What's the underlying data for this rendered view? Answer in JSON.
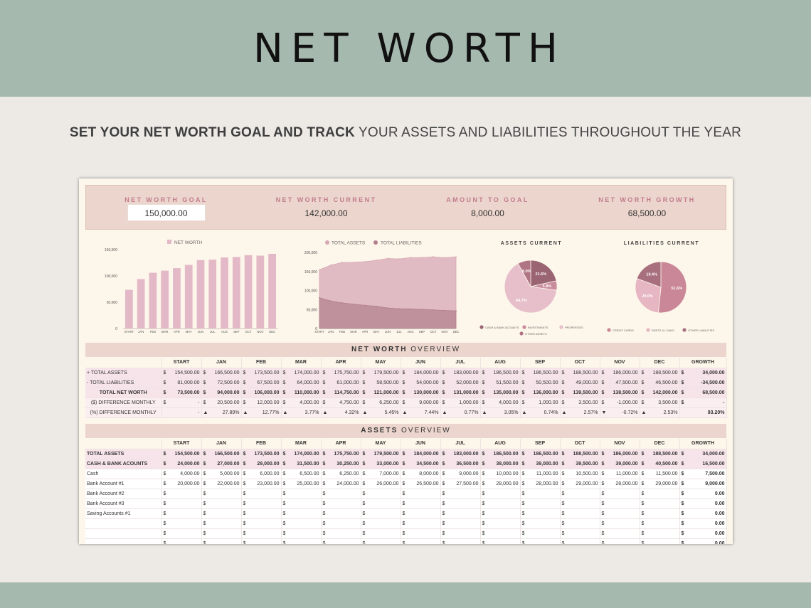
{
  "title": "NET WORTH",
  "subtitle": {
    "bold": "SET YOUR NET WORTH GOAL AND TRACK",
    "rest": " YOUR ASSETS AND LIABILITIES THROUGHOUT THE YEAR"
  },
  "kpis": [
    {
      "label": "NET WORTH GOAL",
      "value": "150,000.00"
    },
    {
      "label": "NET WORTH CURRENT",
      "value": "142,000.00"
    },
    {
      "label": "AMOUNT TO GOAL",
      "value": "8,000.00"
    },
    {
      "label": "NET WORTH GROWTH",
      "value": "68,500.00"
    }
  ],
  "colors": {
    "accent": "#c07d8b",
    "bar": "#e3b9c8",
    "assets": "#d7a7b5",
    "liabilities": "#b07f8c",
    "band": "#a6b9ae"
  },
  "chart_data": [
    {
      "type": "bar",
      "legend": [
        "NET WORTH"
      ],
      "categories": [
        "START",
        "JAN",
        "FEB",
        "MAR",
        "APR",
        "MAY",
        "JUN",
        "JUL",
        "AUG",
        "SEP",
        "OCT",
        "NOV",
        "DEC"
      ],
      "values": [
        73500,
        94000,
        106000,
        110000,
        114750,
        121000,
        130000,
        131000,
        135000,
        136000,
        139500,
        138500,
        142000
      ],
      "yticks": [
        "0",
        "50,000",
        "100,000",
        "150,000"
      ],
      "ylim": [
        0,
        150000
      ]
    },
    {
      "type": "area",
      "categories": [
        "START",
        "JAN",
        "FEB",
        "MAR",
        "APR",
        "MAY",
        "JUN",
        "JUL",
        "AUG",
        "SEP",
        "OCT",
        "NOV",
        "DEC"
      ],
      "series": [
        {
          "name": "TOTAL ASSETS",
          "values": [
            154500,
            166500,
            173500,
            174000,
            175750,
            179500,
            184000,
            183000,
            186500,
            186500,
            188500,
            186000,
            188500
          ]
        },
        {
          "name": "TOTAL LIABILITIES",
          "values": [
            81000,
            72500,
            67500,
            64000,
            61000,
            58500,
            54000,
            52000,
            51500,
            50500,
            49000,
            47500,
            46500
          ]
        }
      ],
      "yticks": [
        "0",
        "50,000",
        "100,000",
        "150,000",
        "200,000"
      ],
      "ylim": [
        0,
        200000
      ]
    },
    {
      "type": "pie",
      "title": "ASSETS CURRENT",
      "labels": [
        "CASH & BANK ACOUNTS",
        "INVESTMENTS",
        "PROPERTIES",
        "OTHER ASSETS"
      ],
      "values": [
        21.5,
        5.8,
        64.7,
        8.0
      ],
      "value_labels": [
        "21.5%",
        "5.8%",
        "64.7%",
        "8.0%"
      ],
      "colors": [
        "#9a6473",
        "#c98c9d",
        "#e6bfcb",
        "#b07585"
      ]
    },
    {
      "type": "pie",
      "title": "LIABILITIES CURRENT",
      "labels": [
        "CREDIT CARDS",
        "DEBTS & LOANS",
        "OTHER LIABILITIES"
      ],
      "values": [
        51.6,
        29.0,
        19.4
      ],
      "value_labels": [
        "51.6%",
        "29.0%",
        "19.4%"
      ],
      "colors": [
        "#c98797",
        "#e6b6c3",
        "#a8707f"
      ]
    }
  ],
  "overview": {
    "title_bold": "NET WORTH",
    "title_rest": " OVERVIEW",
    "headers": [
      "",
      "START",
      "JAN",
      "FEB",
      "MAR",
      "APR",
      "MAY",
      "JUN",
      "JUL",
      "AUG",
      "SEP",
      "OCT",
      "NOV",
      "DEC",
      "GROWTH"
    ],
    "rows": [
      {
        "label": "+ TOTAL ASSETS",
        "cells": [
          "154,500.00",
          "166,500.00",
          "173,500.00",
          "174,000.00",
          "175,750.00",
          "179,500.00",
          "184,000.00",
          "183,000.00",
          "186,500.00",
          "186,500.00",
          "188,500.00",
          "186,000.00",
          "188,500.00"
        ],
        "growth": "34,000.00"
      },
      {
        "label": "- TOTAL LIABILITIES",
        "cells": [
          "81,000.00",
          "72,500.00",
          "67,500.00",
          "64,000.00",
          "61,000.00",
          "58,500.00",
          "54,000.00",
          "52,000.00",
          "51,500.00",
          "50,500.00",
          "49,000.00",
          "47,500.00",
          "46,500.00"
        ],
        "growth": "-34,500.00"
      },
      {
        "label": "TOTAL NET WORTH",
        "cells": [
          "73,500.00",
          "94,000.00",
          "106,000.00",
          "110,000.00",
          "114,750.00",
          "121,000.00",
          "130,000.00",
          "131,000.00",
          "135,000.00",
          "136,000.00",
          "139,500.00",
          "138,500.00",
          "142,000.00"
        ],
        "growth": "68,500.00"
      },
      {
        "label": "($) DIFFERENCE MONTHLY",
        "cells": [
          "-",
          "20,500.00",
          "12,000.00",
          "4,000.00",
          "4,750.00",
          "6,250.00",
          "9,000.00",
          "1,000.00",
          "4,000.00",
          "1,000.00",
          "3,500.00",
          "-1,000.00",
          "3,500.00"
        ],
        "growth": "-"
      },
      {
        "label": "(%) DIFFERENCE MONTHLY",
        "cells": [
          "-",
          "27.89%",
          "12.77%",
          "3.77%",
          "4.32%",
          "5.45%",
          "7.44%",
          "0.77%",
          "3.05%",
          "0.74%",
          "2.57%",
          "-0.72%",
          "2.53%"
        ],
        "arrows": [
          "",
          "▲",
          "▲",
          "▲",
          "▲",
          "▲",
          "▲",
          "▲",
          "▲",
          "▲",
          "▲",
          "▼",
          "▲"
        ],
        "growth": "93.20%"
      }
    ]
  },
  "assets": {
    "title_bold": "ASSETS",
    "title_rest": " OVERVIEW",
    "headers": [
      "",
      "START",
      "JAN",
      "FEB",
      "MAR",
      "APR",
      "MAY",
      "JUN",
      "JUL",
      "AUG",
      "SEP",
      "OCT",
      "NOV",
      "DEC",
      "GROWTH"
    ],
    "rows": [
      {
        "label": "TOTAL ASSETS",
        "cells": [
          "154,500.00",
          "166,500.00",
          "173,500.00",
          "174,000.00",
          "175,750.00",
          "179,500.00",
          "184,000.00",
          "183,000.00",
          "186,500.00",
          "186,500.00",
          "188,500.00",
          "186,000.00",
          "188,500.00"
        ],
        "growth": "34,000.00"
      },
      {
        "label": "CASH & BANK ACOUNTS",
        "cells": [
          "24,000.00",
          "27,000.00",
          "29,000.00",
          "31,500.00",
          "30,250.00",
          "33,000.00",
          "34,500.00",
          "36,500.00",
          "38,000.00",
          "39,000.00",
          "39,500.00",
          "39,000.00",
          "40,500.00"
        ],
        "growth": "16,500.00"
      },
      {
        "label": "Cash",
        "cells": [
          "4,000.00",
          "5,000.00",
          "6,000.00",
          "6,500.00",
          "6,250.00",
          "7,000.00",
          "8,000.00",
          "9,000.00",
          "10,000.00",
          "11,000.00",
          "10,500.00",
          "11,000.00",
          "11,500.00"
        ],
        "growth": "7,500.00"
      },
      {
        "label": "Bank Account #1",
        "cells": [
          "20,000.00",
          "22,000.00",
          "23,000.00",
          "25,000.00",
          "24,000.00",
          "26,000.00",
          "26,500.00",
          "27,500.00",
          "28,000.00",
          "28,000.00",
          "29,000.00",
          "28,000.00",
          "29,000.00"
        ],
        "growth": "9,000.00"
      },
      {
        "label": "Bank Account #2",
        "cells": [
          "",
          "",
          "",
          "",
          "",
          "",
          "",
          "",
          "",
          "",
          "",
          "",
          ""
        ],
        "growth": "0.00"
      },
      {
        "label": "Bank Account #3",
        "cells": [
          "",
          "",
          "",
          "",
          "",
          "",
          "",
          "",
          "",
          "",
          "",
          "",
          ""
        ],
        "growth": "0.00"
      },
      {
        "label": "Saving Accounts #1",
        "cells": [
          "",
          "",
          "",
          "",
          "",
          "",
          "",
          "",
          "",
          "",
          "",
          "",
          ""
        ],
        "growth": "0.00"
      },
      {
        "label": "",
        "cells": [
          "",
          "",
          "",
          "",
          "",
          "",
          "",
          "",
          "",
          "",
          "",
          "",
          ""
        ],
        "growth": "0.00"
      },
      {
        "label": "",
        "cells": [
          "",
          "",
          "",
          "",
          "",
          "",
          "",
          "",
          "",
          "",
          "",
          "",
          ""
        ],
        "growth": "0.00"
      },
      {
        "label": "",
        "cells": [
          "",
          "",
          "",
          "",
          "",
          "",
          "",
          "",
          "",
          "",
          "",
          "",
          ""
        ],
        "growth": "0.00"
      },
      {
        "label": "",
        "cells": [
          "",
          "",
          "",
          "",
          "",
          "",
          "",
          "",
          "",
          "",
          "",
          "",
          ""
        ],
        "growth": "0.00"
      }
    ]
  },
  "currency": "$"
}
